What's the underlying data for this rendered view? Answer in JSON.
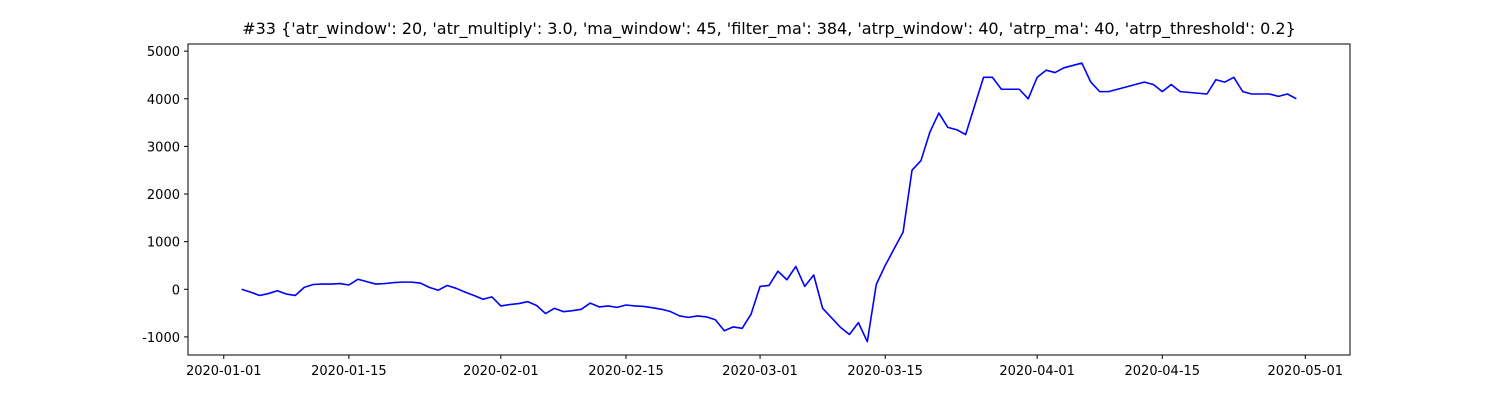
{
  "chart_data": {
    "type": "line",
    "title": "#33 {'atr_window': 20, 'atr_multiply': 3.0, 'ma_window': 45, 'filter_ma': 384, 'atrp_window': 40, 'atrp_ma': 40, 'atrp_threshold': 0.2}",
    "color": "#0000ff",
    "x": [
      "2020-01-03",
      "2020-01-04",
      "2020-01-05",
      "2020-01-06",
      "2020-01-07",
      "2020-01-08",
      "2020-01-09",
      "2020-01-10",
      "2020-01-11",
      "2020-01-12",
      "2020-01-13",
      "2020-01-14",
      "2020-01-15",
      "2020-01-16",
      "2020-01-17",
      "2020-01-18",
      "2020-01-19",
      "2020-01-20",
      "2020-01-21",
      "2020-01-22",
      "2020-01-23",
      "2020-01-24",
      "2020-01-25",
      "2020-01-26",
      "2020-01-27",
      "2020-01-28",
      "2020-01-29",
      "2020-01-30",
      "2020-01-31",
      "2020-02-01",
      "2020-02-02",
      "2020-02-03",
      "2020-02-04",
      "2020-02-05",
      "2020-02-06",
      "2020-02-07",
      "2020-02-08",
      "2020-02-09",
      "2020-02-10",
      "2020-02-11",
      "2020-02-12",
      "2020-02-13",
      "2020-02-14",
      "2020-02-15",
      "2020-02-16",
      "2020-02-17",
      "2020-02-18",
      "2020-02-19",
      "2020-02-20",
      "2020-02-21",
      "2020-02-22",
      "2020-02-23",
      "2020-02-24",
      "2020-02-25",
      "2020-02-26",
      "2020-02-27",
      "2020-02-28",
      "2020-02-29",
      "2020-03-01",
      "2020-03-02",
      "2020-03-03",
      "2020-03-04",
      "2020-03-05",
      "2020-03-06",
      "2020-03-07",
      "2020-03-08",
      "2020-03-09",
      "2020-03-10",
      "2020-03-11",
      "2020-03-12",
      "2020-03-13",
      "2020-03-14",
      "2020-03-15",
      "2020-03-16",
      "2020-03-17",
      "2020-03-18",
      "2020-03-19",
      "2020-03-20",
      "2020-03-21",
      "2020-03-22",
      "2020-03-23",
      "2020-03-24",
      "2020-03-25",
      "2020-03-26",
      "2020-03-27",
      "2020-03-28",
      "2020-03-29",
      "2020-03-30",
      "2020-03-31",
      "2020-04-01",
      "2020-04-02",
      "2020-04-03",
      "2020-04-04",
      "2020-04-05",
      "2020-04-06",
      "2020-04-07",
      "2020-04-08",
      "2020-04-09",
      "2020-04-13",
      "2020-04-14",
      "2020-04-15",
      "2020-04-16",
      "2020-04-17",
      "2020-04-20",
      "2020-04-21",
      "2020-04-22",
      "2020-04-23",
      "2020-04-24",
      "2020-04-25",
      "2020-04-27",
      "2020-04-28",
      "2020-04-29",
      "2020-04-30"
    ],
    "values": [
      0,
      -60,
      -130,
      -90,
      -30,
      -100,
      -130,
      40,
      100,
      110,
      110,
      120,
      90,
      210,
      160,
      110,
      120,
      140,
      150,
      150,
      130,
      40,
      -20,
      80,
      20,
      -60,
      -130,
      -210,
      -160,
      -350,
      -320,
      -300,
      -260,
      -340,
      -510,
      -400,
      -470,
      -450,
      -420,
      -290,
      -370,
      -350,
      -380,
      -330,
      -350,
      -360,
      -390,
      -420,
      -470,
      -560,
      -590,
      -560,
      -580,
      -640,
      -870,
      -790,
      -820,
      -520,
      60,
      80,
      380,
      200,
      480,
      60,
      300,
      -400,
      -600,
      -800,
      -950,
      -700,
      -1100,
      100,
      500,
      850,
      1200,
      2500,
      2700,
      3300,
      3700,
      3400,
      3350,
      3250,
      3850,
      4450,
      4450,
      4200,
      4200,
      4200,
      4000,
      4450,
      4600,
      4550,
      4650,
      4700,
      4750,
      4350,
      4150,
      4150,
      4350,
      4300,
      4150,
      4300,
      4150,
      4100,
      4400,
      4350,
      4450,
      4150,
      4100,
      4100,
      4050,
      4100,
      4000
    ],
    "xlim": [
      "2019-12-28",
      "2020-05-06"
    ],
    "xticks": [
      "2020-01-01",
      "2020-01-15",
      "2020-02-01",
      "2020-02-15",
      "2020-03-01",
      "2020-03-15",
      "2020-04-01",
      "2020-04-15",
      "2020-05-01"
    ],
    "ylim": [
      -1380,
      5150
    ],
    "yticks": [
      -1000,
      0,
      1000,
      2000,
      3000,
      4000,
      5000
    ],
    "grid": false
  }
}
